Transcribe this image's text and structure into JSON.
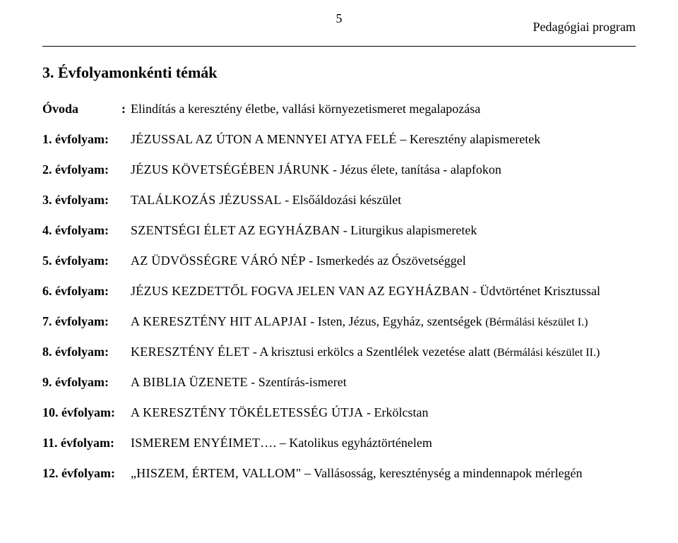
{
  "page_number": "5",
  "header_right": "Pedagógiai program",
  "section_title": "3. Évfolyamonkénti témák",
  "entries": [
    {
      "label": "Óvoda",
      "colon": ":",
      "prefix": "",
      "suffix": "Elindítás a keresztény életbe, vallási környezetismeret megalapozása",
      "paren": ""
    },
    {
      "label": "1. évfolyam:",
      "colon": "",
      "prefix": "JÉZUSSAL AZ ÚTON A MENNYEI ATYA FELÉ",
      "suffix": " – Keresztény alapismeretek",
      "paren": ""
    },
    {
      "label": "2. évfolyam:",
      "colon": "",
      "prefix": "JÉZUS KÖVETSÉGÉBEN JÁRUNK",
      "suffix": "  -  Jézus élete, tanítása - alapfokon",
      "paren": ""
    },
    {
      "label": "3. évfolyam:",
      "colon": "",
      "prefix": "TALÁLKOZÁS JÉZUSSAL",
      "suffix": "  -  Elsőáldozási készület",
      "paren": ""
    },
    {
      "label": "4. évfolyam:",
      "colon": "",
      "prefix": "SZENTSÉGI ÉLET AZ EGYHÁZBAN",
      "suffix": "  -  Liturgikus alapismeretek",
      "paren": ""
    },
    {
      "label": "5. évfolyam:",
      "colon": "",
      "prefix": "AZ ÜDVÖSSÉGRE VÁRÓ NÉP",
      "suffix": "  -  Ismerkedés az Ószövetséggel",
      "paren": ""
    },
    {
      "label": "6. évfolyam:",
      "colon": "",
      "prefix": "JÉZUS KEZDETTŐL FOGVA JELEN VAN AZ EGYHÁZBAN",
      "suffix": "  - Üdvtörténet Krisztussal",
      "paren": ""
    },
    {
      "label": "7. évfolyam:",
      "colon": "",
      "prefix": "A KERESZTÉNY HIT ALAPJAI",
      "suffix": "  -  Isten, Jézus, Egyház, szentségek ",
      "paren": "(Bérmálási készület I.)"
    },
    {
      "label": "8. évfolyam:",
      "colon": "",
      "prefix": "KERESZTÉNY ÉLET",
      "suffix": "  -  A krisztusi erkölcs a Szentlélek vezetése alatt ",
      "paren": "(Bérmálási készület II.)"
    },
    {
      "label": "9. évfolyam:",
      "colon": "",
      "prefix": "A BIBLIA ÜZENETE",
      "suffix": "  - Szentírás-ismeret",
      "paren": ""
    },
    {
      "label": "10. évfolyam:",
      "colon": "",
      "prefix": "A KERESZTÉNY TÖKÉLETESSÉG ÚTJA",
      "suffix": "  -  Erkölcstan",
      "paren": ""
    },
    {
      "label": "11. évfolyam:",
      "colon": "",
      "prefix": "ISMEREM ENYÉIMET….",
      "suffix": " – Katolikus egyháztörténelem",
      "paren": ""
    },
    {
      "label": "12. évfolyam:",
      "colon": "",
      "prefix": "„HISZEM, ÉRTEM, VALLOM\"",
      "suffix": " – Vallásosság, kereszténység a mindennapok mérlegén",
      "paren": ""
    }
  ]
}
